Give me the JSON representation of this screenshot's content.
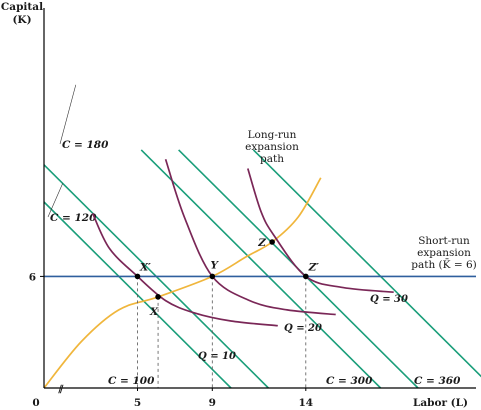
{
  "chart_data": {
    "type": "line",
    "title": "",
    "xlabel": "Labor (L)",
    "ylabel": "Capital (K)",
    "xlim": [
      0,
      20
    ],
    "ylim": [
      0,
      12.8
    ],
    "x_ticks": [
      {
        "value": 0,
        "label": "0"
      },
      {
        "value": 5,
        "label": "5"
      },
      {
        "value": 9,
        "label": "9"
      },
      {
        "value": 14,
        "label": "14"
      }
    ],
    "y_ticks": [
      {
        "value": 6,
        "label": "6"
      }
    ],
    "axis_break_symbol": "⫽",
    "isocost_lines": [
      {
        "name": "C = 100",
        "intercept": 10.0
      },
      {
        "name": "C = 120",
        "intercept": 12.0
      },
      {
        "name": "C = 180",
        "intercept": 18.0
      },
      {
        "name": "C = 300",
        "intercept": 20.0
      },
      {
        "name": "C = 360",
        "intercept": 24.0
      }
    ],
    "isoquants": [
      {
        "name": "Q = 10",
        "points": [
          [
            2.6,
            9.4
          ],
          [
            3.5,
            7.5
          ],
          [
            5,
            6
          ],
          [
            6.5,
            4.7
          ],
          [
            8,
            4.05
          ],
          [
            10,
            3.6
          ],
          [
            12.5,
            3.35
          ]
        ]
      },
      {
        "name": "Q = 20",
        "points": [
          [
            6.5,
            12.3
          ],
          [
            7.5,
            9.2
          ],
          [
            9,
            6
          ],
          [
            11,
            4.7
          ],
          [
            13,
            4.2
          ],
          [
            15.6,
            3.95
          ]
        ]
      },
      {
        "name": "Q = 30",
        "points": [
          [
            10.9,
            11.8
          ],
          [
            11.6,
            9.5
          ],
          [
            12.3,
            8.2
          ],
          [
            14,
            6
          ],
          [
            16,
            5.4
          ],
          [
            18.7,
            5.15
          ]
        ]
      }
    ],
    "series": [
      {
        "name": "Long-run expansion path",
        "points": [
          [
            0,
            0
          ],
          [
            2,
            2.5
          ],
          [
            4,
            4.2
          ],
          [
            6.1,
            4.9
          ],
          [
            9,
            6
          ],
          [
            10.8,
            7.05
          ],
          [
            12.2,
            7.85
          ],
          [
            13.6,
            9.2
          ],
          [
            14.8,
            11.3
          ]
        ]
      },
      {
        "name": "Short-run expansion path (K̄ = 6)",
        "points": [
          [
            0,
            6
          ],
          [
            20,
            6
          ]
        ]
      }
    ],
    "points": [
      {
        "label": "X",
        "x": 6.1,
        "y": 4.9
      },
      {
        "label": "X′",
        "x": 5,
        "y": 6
      },
      {
        "label": "Y",
        "x": 9,
        "y": 6
      },
      {
        "label": "Z",
        "x": 12.2,
        "y": 7.85
      },
      {
        "label": "Z′",
        "x": 14,
        "y": 6
      }
    ],
    "annotations": {
      "long_run_label": [
        "Long-run",
        "expansion",
        "path"
      ],
      "short_run_label": [
        "Short-run",
        "expansion",
        "path (K̄ = 6)"
      ]
    },
    "colors": {
      "isocost": "#1a9e7a",
      "isoquant": "#7a2757",
      "long_run_path": "#f0b63c",
      "short_run_path": "#2f5f9e",
      "points": "#000000"
    },
    "grid": false,
    "legend": "none"
  }
}
